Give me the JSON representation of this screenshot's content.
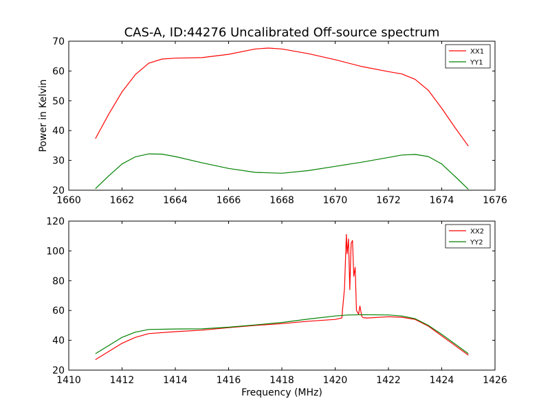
{
  "figure": {
    "title": "CAS-A, ID:44276 Uncalibrated Off-source spectrum"
  },
  "colors": {
    "red": "#ff0000",
    "green": "#008000",
    "axes": "#000000"
  },
  "chart_data": [
    {
      "type": "line",
      "title": "CAS-A, ID:44276 Uncalibrated Off-source spectrum",
      "xlabel": "",
      "ylabel": "Power in Kelvin",
      "xlim": [
        1660,
        1676
      ],
      "ylim": [
        20,
        70
      ],
      "xticks": [
        1660,
        1662,
        1664,
        1666,
        1668,
        1670,
        1672,
        1674,
        1676
      ],
      "yticks": [
        20,
        30,
        40,
        50,
        60,
        70
      ],
      "grid": false,
      "legend": "top-right",
      "series": [
        {
          "name": "XX1",
          "color": "#ff0000",
          "x": [
            1661.0,
            1661.5,
            1662.0,
            1662.5,
            1663.0,
            1663.5,
            1664.0,
            1665.0,
            1666.0,
            1667.0,
            1667.5,
            1668.0,
            1669.0,
            1670.0,
            1671.0,
            1672.0,
            1672.5,
            1673.0,
            1673.5,
            1674.0,
            1674.5,
            1675.0
          ],
          "y": [
            37.3,
            45.5,
            53.0,
            58.8,
            62.6,
            64.0,
            64.3,
            64.5,
            65.6,
            67.4,
            67.7,
            67.4,
            65.8,
            63.8,
            61.5,
            59.8,
            59.0,
            57.2,
            53.5,
            47.5,
            41.0,
            34.8
          ]
        },
        {
          "name": "YY1",
          "color": "#008000",
          "x": [
            1661.0,
            1661.5,
            1662.0,
            1662.5,
            1663.0,
            1663.5,
            1664.0,
            1665.0,
            1666.0,
            1667.0,
            1668.0,
            1669.0,
            1670.0,
            1671.0,
            1672.0,
            1672.5,
            1673.0,
            1673.5,
            1674.0,
            1674.5,
            1675.0
          ],
          "y": [
            20.5,
            24.8,
            28.8,
            31.2,
            32.2,
            32.1,
            31.3,
            29.2,
            27.3,
            26.0,
            25.7,
            26.6,
            28.0,
            29.4,
            31.0,
            31.8,
            32.0,
            31.3,
            28.8,
            24.6,
            20.3
          ]
        }
      ]
    },
    {
      "type": "line",
      "title": "",
      "xlabel": "Frequency (MHz)",
      "ylabel": "",
      "xlim": [
        1410,
        1426
      ],
      "ylim": [
        20,
        120
      ],
      "xticks": [
        1410,
        1412,
        1414,
        1416,
        1418,
        1420,
        1422,
        1424,
        1426
      ],
      "yticks": [
        20,
        40,
        60,
        80,
        100,
        120
      ],
      "grid": false,
      "legend": "top-right",
      "series": [
        {
          "name": "XX2",
          "color": "#ff0000",
          "x": [
            1411.0,
            1411.5,
            1412.0,
            1412.5,
            1413.0,
            1414.0,
            1415.0,
            1416.0,
            1417.0,
            1418.0,
            1419.0,
            1420.0,
            1420.25,
            1420.35,
            1420.42,
            1420.45,
            1420.5,
            1420.55,
            1420.6,
            1420.65,
            1420.7,
            1420.75,
            1420.8,
            1420.88,
            1420.93,
            1421.0,
            1421.05,
            1421.2,
            1422.0,
            1422.5,
            1423.0,
            1423.5,
            1424.0,
            1424.5,
            1425.0
          ],
          "y": [
            27.0,
            32.5,
            38.0,
            42.0,
            44.5,
            45.8,
            46.8,
            48.5,
            50.0,
            51.2,
            52.8,
            54.0,
            55.0,
            75.0,
            111.0,
            98.0,
            108.0,
            74.0,
            105.0,
            107.0,
            83.0,
            89.0,
            60.0,
            57.5,
            63.0,
            56.0,
            55.2,
            55.0,
            55.8,
            55.5,
            54.0,
            49.5,
            43.0,
            36.5,
            30.0
          ]
        },
        {
          "name": "YY2",
          "color": "#008000",
          "x": [
            1411.0,
            1411.5,
            1412.0,
            1412.5,
            1413.0,
            1414.0,
            1415.0,
            1416.0,
            1417.0,
            1418.0,
            1419.0,
            1420.0,
            1420.5,
            1421.0,
            1422.0,
            1422.5,
            1423.0,
            1423.5,
            1424.0,
            1424.5,
            1425.0
          ],
          "y": [
            31.0,
            36.5,
            42.0,
            45.5,
            47.3,
            47.6,
            47.7,
            48.8,
            50.3,
            52.0,
            54.3,
            56.3,
            57.0,
            57.2,
            57.0,
            56.3,
            54.5,
            50.0,
            44.0,
            37.5,
            31.0
          ]
        }
      ]
    }
  ]
}
